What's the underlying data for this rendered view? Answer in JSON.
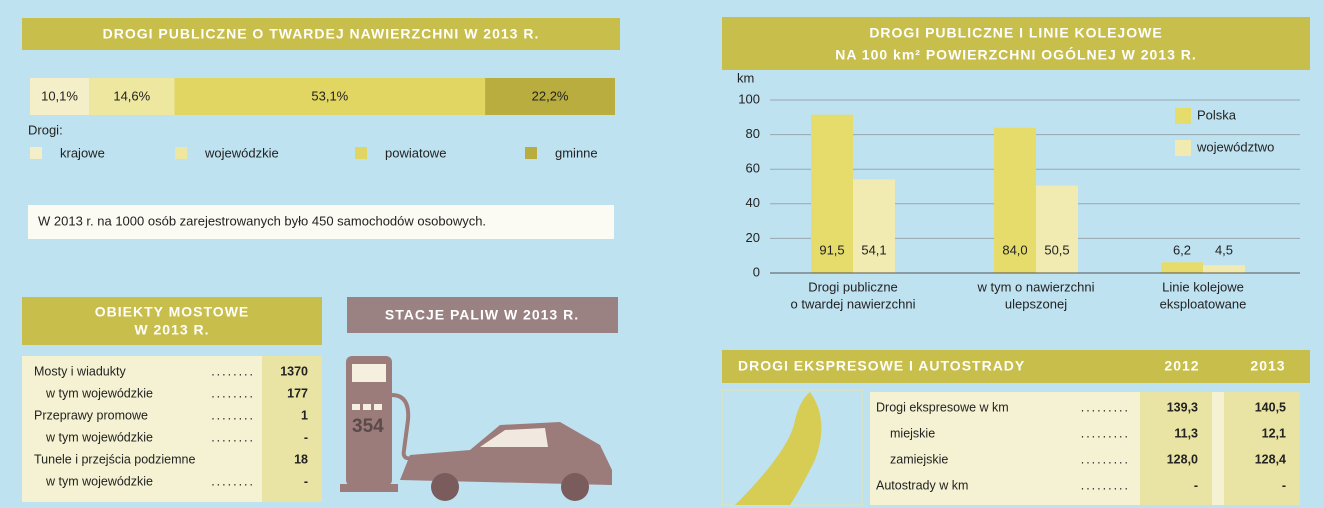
{
  "chart_data": [
    {
      "type": "stacked_bar",
      "title": "DROGI PUBLICZNE O TWARDEJ NAWIERZCHNI W 2013 R.",
      "legend_title": "Drogi:",
      "series": [
        {
          "name": "krajowe",
          "color": "#f4efc8",
          "values": [
            10.1
          ],
          "value_labels": [
            "10,1%"
          ]
        },
        {
          "name": "wojewódzkie",
          "color": "#ede7a0",
          "values": [
            14.6
          ],
          "value_labels": [
            "14,6%"
          ]
        },
        {
          "name": "powiatowe",
          "color": "#e2d662",
          "values": [
            53.1
          ],
          "value_labels": [
            "53,1%"
          ]
        },
        {
          "name": "gminne",
          "color": "#b8ad3e",
          "values": [
            22.2
          ],
          "value_labels": [
            "22,2%"
          ]
        }
      ]
    },
    {
      "type": "bar",
      "title": [
        "DROGI PUBLICZNE I LINIE KOLEJOWE",
        "NA 100 km² POWIERZCHNI OGÓLNEJ W 2013 R."
      ],
      "y_label": "km",
      "categories": [
        [
          "Drogi publiczne",
          "o twardej nawierzchni"
        ],
        [
          "w tym o nawierzchni",
          "ulepszonej"
        ],
        [
          "Linie kolejowe",
          "eksploatowane"
        ]
      ],
      "series": [
        {
          "name": "Polska",
          "color": "#e6dc6c",
          "values": [
            91.5,
            84.0,
            6.2
          ],
          "value_labels": [
            "91,5",
            "84,0",
            "6,2"
          ]
        },
        {
          "name": "województwo",
          "color": "#f1ebb2",
          "values": [
            54.1,
            50.5,
            4.5
          ],
          "value_labels": [
            "54,1",
            "50,5",
            "4,5"
          ]
        }
      ],
      "ylim": [
        0,
        100
      ],
      "yticks": [
        0,
        20,
        40,
        60,
        80,
        100
      ],
      "grid": true
    }
  ],
  "note": "W 2013 r. na 1000 osób zarejestrowanych było 450 samochodów osobowych.",
  "bridges": {
    "title": [
      "OBIEKTY MOSTOWE",
      "W 2013 R."
    ],
    "rows": [
      [
        "Mosty i wiadukty",
        1370
      ],
      [
        "w tym wojewódzkie",
        177
      ],
      [
        "Przeprawy promowe",
        1
      ],
      [
        "w tym wojewódzkie",
        "-"
      ],
      [
        "Tunele i przejścia podziemne",
        18
      ],
      [
        "w tym wojewódzkie",
        "-"
      ]
    ]
  },
  "fuel": {
    "title": "STACJE PALIW W 2013 R.",
    "value": 354
  },
  "expressways": {
    "title": "DROGI EKSPRESOWE I AUTOSTRADY",
    "columns": [
      "2012",
      "2013"
    ],
    "rows": [
      [
        "Drogi ekspresowe w km",
        "139,3",
        "140,5"
      ],
      [
        "miejskie",
        "11,3",
        "12,1"
      ],
      [
        "zamiejskie",
        "128,0",
        "128,4"
      ],
      [
        "Autostrady w km",
        "-",
        "-"
      ]
    ]
  }
}
